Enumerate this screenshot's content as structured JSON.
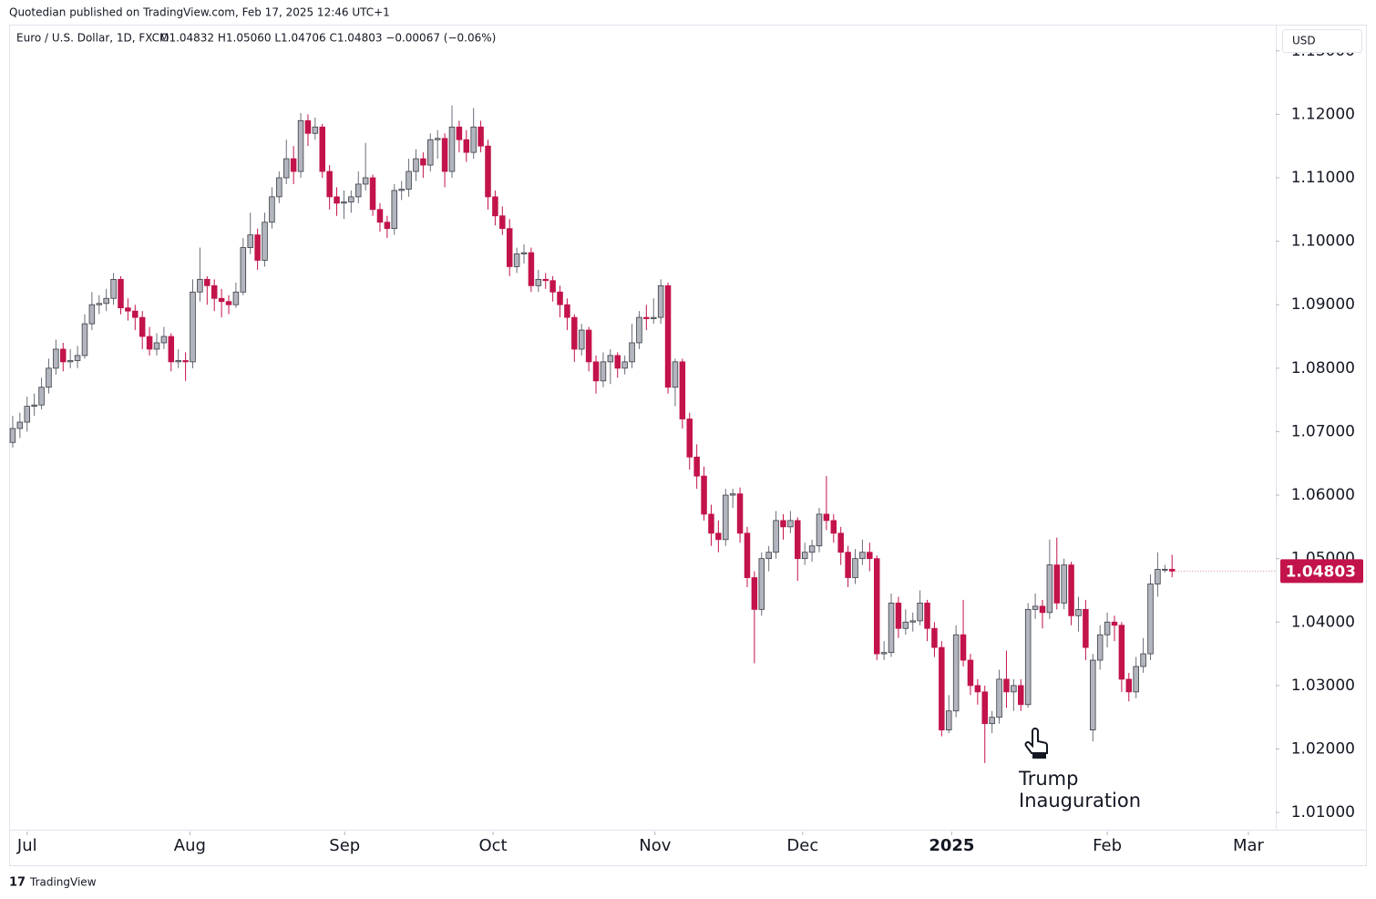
{
  "chart_data": {
    "type": "candlestick",
    "published": "Quotedian published on TradingView.com, Feb 17, 2025 12:46 UTC+1",
    "title": "Euro / U.S. Dollar, 1D, FXCM",
    "legend_text": "O1.04832 H1.05060 L1.04706 C1.04803 −0.00067 (−0.06%)",
    "currency": "USD",
    "annotation": [
      "Trump",
      "Inauguration"
    ],
    "brand": "TradingView",
    "up_color": "#b2b5be",
    "down_color": "#c2134a",
    "ylim": [
      1.007,
      1.1337
    ],
    "yticks": [
      {
        "value": 1.01,
        "label": "1.01000"
      },
      {
        "value": 1.02,
        "label": "1.02000"
      },
      {
        "value": 1.03,
        "label": "1.03000"
      },
      {
        "value": 1.04,
        "label": "1.04000"
      },
      {
        "value": 1.05,
        "label": "1.05000"
      },
      {
        "value": 1.06,
        "label": "1.06000"
      },
      {
        "value": 1.07,
        "label": "1.07000"
      },
      {
        "value": 1.08,
        "label": "1.08000"
      },
      {
        "value": 1.09,
        "label": "1.09000"
      },
      {
        "value": 1.1,
        "label": "1.10000"
      },
      {
        "value": 1.11,
        "label": "1.11000"
      },
      {
        "value": 1.12,
        "label": "1.12000"
      },
      {
        "value": 1.13,
        "label": "1.13000"
      }
    ],
    "xlim": [
      -0.5,
      175.4
    ],
    "xticks": [
      {
        "value": 2.0,
        "label": "Jul"
      },
      {
        "value": 24.6,
        "label": "Aug"
      },
      {
        "value": 46.1,
        "label": "Sep"
      },
      {
        "value": 66.7,
        "label": "Oct"
      },
      {
        "value": 89.2,
        "label": "Nov"
      },
      {
        "value": 109.7,
        "label": "Dec"
      },
      {
        "value": 130.4,
        "label": "2025",
        "bold": true
      },
      {
        "value": 152.0,
        "label": "Feb"
      },
      {
        "value": 171.6,
        "label": "Mar"
      }
    ],
    "candles": [
      [
        1.0683,
        1.0725,
        1.0675,
        1.0705
      ],
      [
        1.0705,
        1.073,
        1.069,
        1.0715
      ],
      [
        1.0715,
        1.0755,
        1.07,
        1.074
      ],
      [
        1.074,
        1.076,
        1.0725,
        1.0742
      ],
      [
        1.0742,
        1.0785,
        1.0735,
        1.077
      ],
      [
        1.077,
        1.0815,
        1.076,
        1.08
      ],
      [
        1.08,
        1.0845,
        1.079,
        1.083
      ],
      [
        1.083,
        1.084,
        1.0795,
        1.081
      ],
      [
        1.081,
        1.083,
        1.08,
        1.0812
      ],
      [
        1.0812,
        1.0835,
        1.08,
        1.082
      ],
      [
        1.082,
        1.0885,
        1.0815,
        1.087
      ],
      [
        1.087,
        1.092,
        1.086,
        1.09
      ],
      [
        1.09,
        1.0915,
        1.0885,
        1.0902
      ],
      [
        1.0902,
        1.0925,
        1.089,
        1.091
      ],
      [
        1.091,
        1.095,
        1.09,
        1.094
      ],
      [
        1.094,
        1.0945,
        1.0885,
        1.0895
      ],
      [
        1.0895,
        1.091,
        1.0875,
        1.089
      ],
      [
        1.089,
        1.09,
        1.086,
        1.088
      ],
      [
        1.088,
        1.089,
        1.083,
        1.085
      ],
      [
        1.085,
        1.0865,
        1.082,
        1.083
      ],
      [
        1.083,
        1.0855,
        1.082,
        1.084
      ],
      [
        1.084,
        1.0865,
        1.083,
        1.085
      ],
      [
        1.085,
        1.0855,
        1.0795,
        1.081
      ],
      [
        1.081,
        1.083,
        1.08,
        1.0812
      ],
      [
        1.0812,
        1.0825,
        1.078,
        1.081
      ],
      [
        1.081,
        1.094,
        1.08,
        1.092
      ],
      [
        1.092,
        1.099,
        1.0905,
        1.094
      ],
      [
        1.094,
        1.0945,
        1.09,
        1.093
      ],
      [
        1.093,
        1.094,
        1.089,
        1.091
      ],
      [
        1.091,
        1.0925,
        1.088,
        1.0905
      ],
      [
        1.0905,
        1.0915,
        1.0885,
        1.09
      ],
      [
        1.09,
        1.0935,
        1.0895,
        1.092
      ],
      [
        1.092,
        1.1005,
        1.0915,
        1.099
      ],
      [
        1.099,
        1.1045,
        1.098,
        1.101
      ],
      [
        1.101,
        1.102,
        1.0955,
        1.097
      ],
      [
        1.097,
        1.1045,
        1.096,
        1.103
      ],
      [
        1.103,
        1.1085,
        1.102,
        1.107
      ],
      [
        1.107,
        1.111,
        1.106,
        1.11
      ],
      [
        1.11,
        1.116,
        1.109,
        1.113
      ],
      [
        1.113,
        1.115,
        1.109,
        1.111
      ],
      [
        1.111,
        1.1202,
        1.11,
        1.119
      ],
      [
        1.119,
        1.12,
        1.115,
        1.117
      ],
      [
        1.117,
        1.1195,
        1.116,
        1.118
      ],
      [
        1.118,
        1.1185,
        1.11,
        1.111
      ],
      [
        1.111,
        1.112,
        1.105,
        1.107
      ],
      [
        1.107,
        1.1085,
        1.104,
        1.106
      ],
      [
        1.106,
        1.108,
        1.1035,
        1.1062
      ],
      [
        1.1062,
        1.108,
        1.1045,
        1.107
      ],
      [
        1.107,
        1.111,
        1.106,
        1.109
      ],
      [
        1.109,
        1.1155,
        1.108,
        1.11
      ],
      [
        1.11,
        1.1105,
        1.104,
        1.105
      ],
      [
        1.105,
        1.106,
        1.1015,
        1.103
      ],
      [
        1.103,
        1.104,
        1.1005,
        1.102
      ],
      [
        1.102,
        1.109,
        1.101,
        1.108
      ],
      [
        1.108,
        1.1095,
        1.1065,
        1.1082
      ],
      [
        1.1082,
        1.113,
        1.107,
        1.111
      ],
      [
        1.111,
        1.1145,
        1.1095,
        1.113
      ],
      [
        1.113,
        1.114,
        1.11,
        1.112
      ],
      [
        1.112,
        1.117,
        1.111,
        1.116
      ],
      [
        1.116,
        1.1175,
        1.113,
        1.1162
      ],
      [
        1.1162,
        1.117,
        1.1085,
        1.111
      ],
      [
        1.111,
        1.1214,
        1.11,
        1.118
      ],
      [
        1.118,
        1.119,
        1.114,
        1.116
      ],
      [
        1.116,
        1.1175,
        1.1125,
        1.114
      ],
      [
        1.114,
        1.121,
        1.113,
        1.118
      ],
      [
        1.118,
        1.119,
        1.114,
        1.115
      ],
      [
        1.115,
        1.116,
        1.105,
        1.107
      ],
      [
        1.107,
        1.108,
        1.1025,
        1.104
      ],
      [
        1.104,
        1.1055,
        1.101,
        1.102
      ],
      [
        1.102,
        1.1035,
        1.0945,
        1.096
      ],
      [
        1.096,
        1.099,
        1.095,
        1.098
      ],
      [
        1.098,
        1.0995,
        1.0965,
        1.0982
      ],
      [
        1.0982,
        1.099,
        1.092,
        1.093
      ],
      [
        1.093,
        1.0955,
        1.092,
        1.094
      ],
      [
        1.094,
        1.095,
        1.0925,
        1.0938
      ],
      [
        1.0938,
        1.0945,
        1.0905,
        1.092
      ],
      [
        1.092,
        1.093,
        1.088,
        1.09
      ],
      [
        1.09,
        1.091,
        1.086,
        1.088
      ],
      [
        1.088,
        1.0885,
        1.081,
        1.083
      ],
      [
        1.083,
        1.087,
        1.082,
        1.086
      ],
      [
        1.086,
        1.0865,
        1.0795,
        1.081
      ],
      [
        1.081,
        1.082,
        1.076,
        1.078
      ],
      [
        1.078,
        1.0825,
        1.077,
        1.081
      ],
      [
        1.081,
        1.083,
        1.0775,
        1.082
      ],
      [
        1.082,
        1.0825,
        1.0785,
        1.08
      ],
      [
        1.08,
        1.082,
        1.079,
        1.081
      ],
      [
        1.081,
        1.087,
        1.08,
        1.084
      ],
      [
        1.084,
        1.089,
        1.083,
        1.088
      ],
      [
        1.088,
        1.09,
        1.086,
        1.0878
      ],
      [
        1.0878,
        1.091,
        1.087,
        1.088
      ],
      [
        1.088,
        1.094,
        1.087,
        1.093
      ],
      [
        1.093,
        1.0935,
        1.076,
        1.077
      ],
      [
        1.077,
        1.0815,
        1.074,
        1.081
      ],
      [
        1.081,
        1.0815,
        1.0705,
        1.072
      ],
      [
        1.072,
        1.073,
        1.064,
        1.066
      ],
      [
        1.066,
        1.068,
        1.061,
        1.063
      ],
      [
        1.063,
        1.0645,
        1.056,
        1.057
      ],
      [
        1.057,
        1.0585,
        1.052,
        1.054
      ],
      [
        1.054,
        1.056,
        1.051,
        1.053
      ],
      [
        1.053,
        1.061,
        1.052,
        1.06
      ],
      [
        1.06,
        1.061,
        1.058,
        1.0602
      ],
      [
        1.0602,
        1.0612,
        1.0525,
        1.054
      ],
      [
        1.054,
        1.055,
        1.0455,
        1.047
      ],
      [
        1.047,
        1.048,
        1.0335,
        1.042
      ],
      [
        1.042,
        1.051,
        1.041,
        1.05
      ],
      [
        1.05,
        1.052,
        1.048,
        1.051
      ],
      [
        1.051,
        1.0575,
        1.05,
        1.056
      ],
      [
        1.056,
        1.057,
        1.053,
        1.055
      ],
      [
        1.055,
        1.0575,
        1.054,
        1.056
      ],
      [
        1.056,
        1.0565,
        1.0465,
        1.05
      ],
      [
        1.05,
        1.0525,
        1.049,
        1.051
      ],
      [
        1.051,
        1.053,
        1.0495,
        1.052
      ],
      [
        1.052,
        1.058,
        1.051,
        1.057
      ],
      [
        1.057,
        1.063,
        1.0545,
        1.056
      ],
      [
        1.056,
        1.057,
        1.0525,
        1.054
      ],
      [
        1.054,
        1.055,
        1.049,
        1.051
      ],
      [
        1.051,
        1.052,
        1.0455,
        1.047
      ],
      [
        1.047,
        1.0515,
        1.046,
        1.05
      ],
      [
        1.05,
        1.053,
        1.049,
        1.051
      ],
      [
        1.051,
        1.0525,
        1.048,
        1.05
      ],
      [
        1.05,
        1.0505,
        1.034,
        1.035
      ],
      [
        1.035,
        1.037,
        1.034,
        1.0352
      ],
      [
        1.0352,
        1.0445,
        1.0345,
        1.043
      ],
      [
        1.043,
        1.044,
        1.0375,
        1.039
      ],
      [
        1.039,
        1.042,
        1.038,
        1.04
      ],
      [
        1.04,
        1.0415,
        1.0385,
        1.0402
      ],
      [
        1.0402,
        1.045,
        1.0395,
        1.043
      ],
      [
        1.043,
        1.0435,
        1.037,
        1.039
      ],
      [
        1.039,
        1.04,
        1.0345,
        1.036
      ],
      [
        1.036,
        1.037,
        1.022,
        1.023
      ],
      [
        1.023,
        1.0285,
        1.0225,
        1.026
      ],
      [
        1.026,
        1.0395,
        1.025,
        1.038
      ],
      [
        1.038,
        1.0435,
        1.033,
        1.034
      ],
      [
        1.034,
        1.035,
        1.0285,
        1.03
      ],
      [
        1.03,
        1.031,
        1.027,
        1.029
      ],
      [
        1.029,
        1.03,
        1.0178,
        1.024
      ],
      [
        1.024,
        1.026,
        1.0225,
        1.025
      ],
      [
        1.025,
        1.0325,
        1.024,
        1.031
      ],
      [
        1.031,
        1.0355,
        1.0265,
        1.029
      ],
      [
        1.029,
        1.031,
        1.026,
        1.03
      ],
      [
        1.03,
        1.031,
        1.026,
        1.027
      ],
      [
        1.027,
        1.043,
        1.0265,
        1.042
      ],
      [
        1.042,
        1.0445,
        1.0405,
        1.0425
      ],
      [
        1.0425,
        1.0435,
        1.039,
        1.0415
      ],
      [
        1.0415,
        1.053,
        1.0405,
        1.049
      ],
      [
        1.049,
        1.0533,
        1.042,
        1.043
      ],
      [
        1.043,
        1.05,
        1.042,
        1.049
      ],
      [
        1.049,
        1.0495,
        1.0395,
        1.041
      ],
      [
        1.041,
        1.044,
        1.0385,
        1.042
      ],
      [
        1.042,
        1.0435,
        1.034,
        1.036
      ],
      [
        1.023,
        1.035,
        1.0212,
        1.034
      ],
      [
        1.034,
        1.0395,
        1.0325,
        1.038
      ],
      [
        1.038,
        1.0415,
        1.036,
        1.04
      ],
      [
        1.04,
        1.041,
        1.037,
        1.0395
      ],
      [
        1.0395,
        1.04,
        1.029,
        1.031
      ],
      [
        1.031,
        1.032,
        1.0275,
        1.029
      ],
      [
        1.029,
        1.0345,
        1.028,
        1.033
      ],
      [
        1.033,
        1.0375,
        1.032,
        1.035
      ],
      [
        1.035,
        1.0475,
        1.034,
        1.046
      ],
      [
        1.046,
        1.051,
        1.044,
        1.0483
      ],
      [
        1.0483,
        1.049,
        1.0478,
        1.04832
      ],
      [
        1.04832,
        1.0506,
        1.04706,
        1.04803
      ]
    ]
  }
}
